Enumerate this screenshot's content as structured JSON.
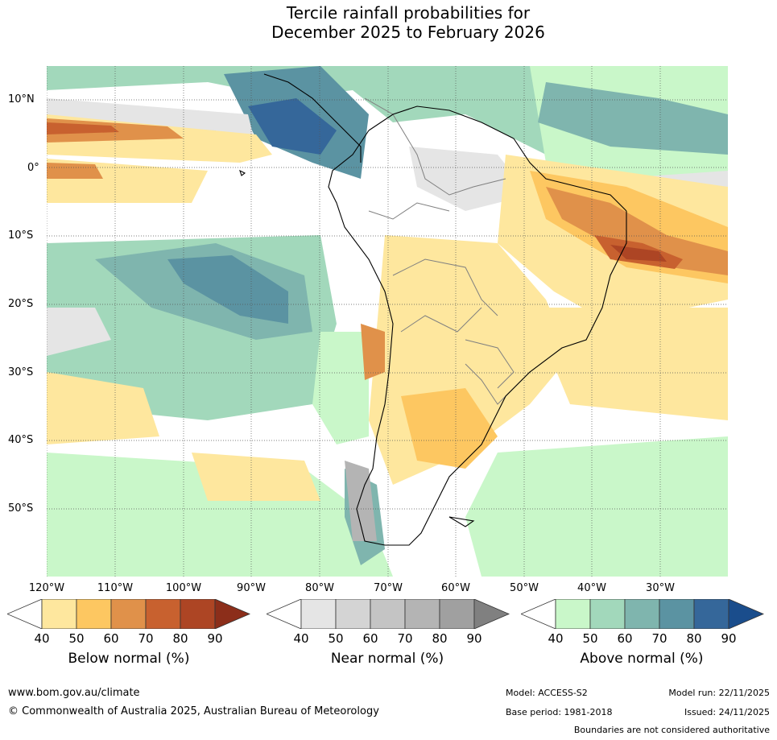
{
  "title": {
    "line1": "Tercile rainfall probabilities for",
    "line2": "December 2025 to February 2026"
  },
  "map": {
    "lat_labels": [
      "10°N",
      "0°",
      "10°S",
      "20°S",
      "30°S",
      "40°S",
      "50°S"
    ],
    "lon_labels": [
      "120°W",
      "110°W",
      "100°W",
      "90°W",
      "80°W",
      "70°W",
      "60°W",
      "50°W",
      "40°W",
      "30°W"
    ]
  },
  "colorbars": {
    "below": {
      "title": "Below normal (%)",
      "ticks": [
        "40",
        "50",
        "60",
        "70",
        "80",
        "90"
      ],
      "colors": [
        "#ffffff",
        "#fee79e",
        "#fdc761",
        "#e0914a",
        "#c8612f",
        "#ad4524",
        "#8c2e1a"
      ]
    },
    "near": {
      "title": "Near normal (%)",
      "ticks": [
        "40",
        "50",
        "60",
        "70",
        "80",
        "90"
      ],
      "colors": [
        "#ffffff",
        "#e5e5e5",
        "#d4d4d4",
        "#c4c4c4",
        "#b4b4b4",
        "#a0a0a0",
        "#808080"
      ]
    },
    "above": {
      "title": "Above normal (%)",
      "ticks": [
        "40",
        "50",
        "60",
        "70",
        "80",
        "90"
      ],
      "colors": [
        "#ffffff",
        "#c9f7c9",
        "#a2d8bb",
        "#7fb5ae",
        "#5b93a2",
        "#35679a",
        "#1a4d8c"
      ]
    }
  },
  "footer": {
    "website": "www.bom.gov.au/climate",
    "copyright": "© Commonwealth of Australia 2025, Australian Bureau of Meteorology",
    "model": "Model: ACCESS-S2",
    "model_run": "Model run: 22/11/2025",
    "base_period": "Base period: 1981-2018",
    "issued": "Issued: 24/11/2025",
    "disclaimer": "Boundaries are not considered authoritative"
  }
}
